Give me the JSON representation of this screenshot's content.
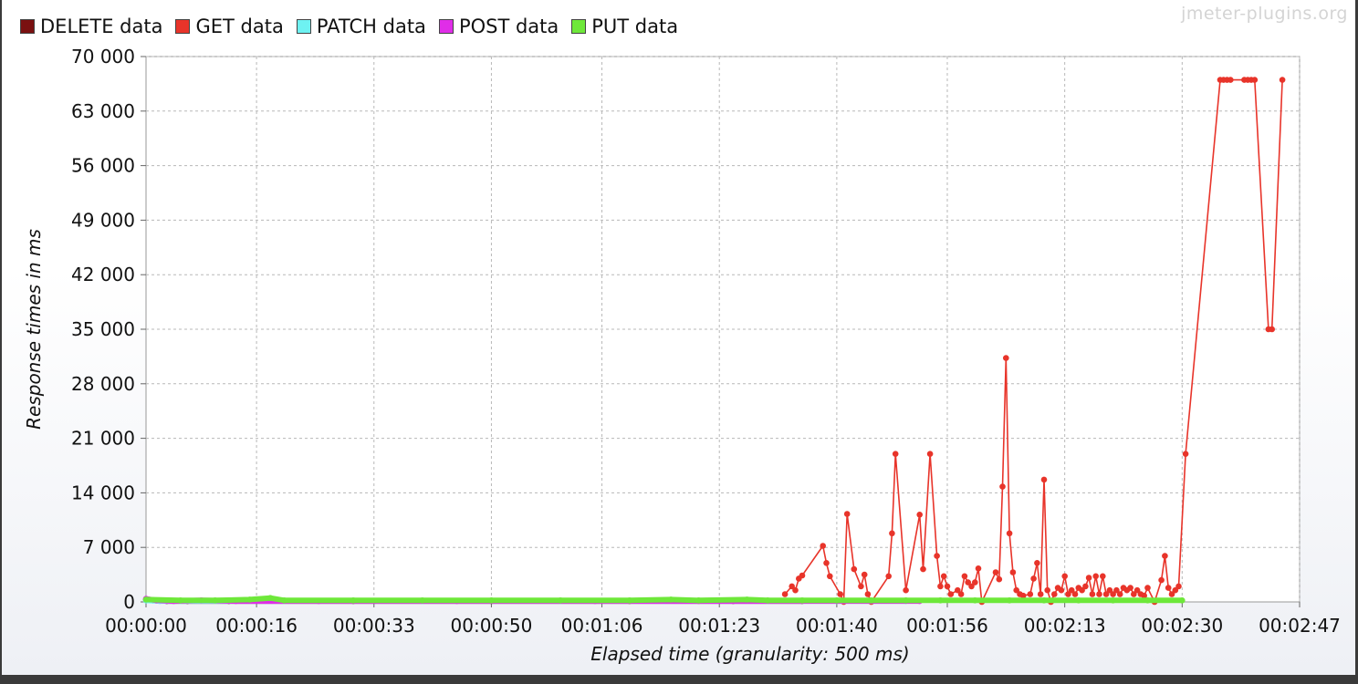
{
  "watermark": "jmeter-plugins.org",
  "chart_data": {
    "type": "line",
    "title": "",
    "xlabel": "Elapsed time (granularity: 500 ms)",
    "ylabel": "Response times in ms",
    "xlim": [
      "00:00:00",
      "00:02:47"
    ],
    "ylim": [
      0,
      70000
    ],
    "x_ticks": [
      "00:00:00",
      "00:00:16",
      "00:00:33",
      "00:00:50",
      "00:01:06",
      "00:01:23",
      "00:01:40",
      "00:01:56",
      "00:02:13",
      "00:02:30",
      "00:02:47"
    ],
    "y_ticks": [
      "0",
      "7 000",
      "14 000",
      "21 000",
      "28 000",
      "35 000",
      "42 000",
      "49 000",
      "56 000",
      "63 000",
      "70 000"
    ],
    "grid": true,
    "legend_placement": "top-left",
    "series": [
      {
        "name": "DELETE data",
        "color": "#7a1010",
        "points": [
          [
            0,
            300
          ],
          [
            1,
            200
          ],
          [
            3,
            100
          ],
          [
            6,
            100
          ],
          [
            12,
            100
          ],
          [
            30,
            100
          ],
          [
            50,
            100
          ],
          [
            70,
            100
          ],
          [
            85,
            100
          ],
          [
            95,
            100
          ]
        ]
      },
      {
        "name": "GET data",
        "color": "#e8342a",
        "points": [
          [
            92.5,
            1000
          ],
          [
            93.5,
            2000
          ],
          [
            94,
            1500
          ],
          [
            94.5,
            3000
          ],
          [
            95,
            3400
          ],
          [
            98,
            7200
          ],
          [
            98.5,
            5000
          ],
          [
            99,
            3300
          ],
          [
            100.5,
            1000
          ],
          [
            101,
            0
          ],
          [
            101.5,
            11300
          ],
          [
            102.5,
            4200
          ],
          [
            103.5,
            2000
          ],
          [
            104,
            3500
          ],
          [
            104.5,
            1000
          ],
          [
            105,
            0
          ],
          [
            107.5,
            3300
          ],
          [
            108,
            8800
          ],
          [
            108.5,
            19000
          ],
          [
            110,
            1500
          ],
          [
            112,
            11200
          ],
          [
            112.5,
            4200
          ],
          [
            113.5,
            19000
          ],
          [
            114.5,
            5900
          ],
          [
            115,
            2000
          ],
          [
            115.5,
            3300
          ],
          [
            116,
            2000
          ],
          [
            116.5,
            1000
          ],
          [
            117.5,
            1500
          ],
          [
            118,
            1000
          ],
          [
            118.5,
            3300
          ],
          [
            119,
            2500
          ],
          [
            119.5,
            2000
          ],
          [
            120,
            2500
          ],
          [
            120.5,
            4300
          ],
          [
            121,
            0
          ],
          [
            123,
            3800
          ],
          [
            123.5,
            2900
          ],
          [
            124,
            14800
          ],
          [
            124.5,
            31300
          ],
          [
            125,
            8800
          ],
          [
            125.5,
            3800
          ],
          [
            126,
            1500
          ],
          [
            126.5,
            1000
          ],
          [
            127,
            800
          ],
          [
            128,
            1000
          ],
          [
            128.5,
            3000
          ],
          [
            129,
            5000
          ],
          [
            129.5,
            1000
          ],
          [
            130,
            15700
          ],
          [
            130.5,
            1500
          ],
          [
            131,
            0
          ],
          [
            131.5,
            1000
          ],
          [
            132,
            1800
          ],
          [
            132.5,
            1500
          ],
          [
            133,
            3300
          ],
          [
            133.5,
            1000
          ],
          [
            134,
            1500
          ],
          [
            134.5,
            1000
          ],
          [
            135,
            1800
          ],
          [
            135.5,
            1500
          ],
          [
            136,
            2000
          ],
          [
            136.5,
            3100
          ],
          [
            137,
            1000
          ],
          [
            137.5,
            3300
          ],
          [
            138,
            1000
          ],
          [
            138.5,
            3300
          ],
          [
            139,
            1000
          ],
          [
            139.5,
            1500
          ],
          [
            140,
            1000
          ],
          [
            140.5,
            1500
          ],
          [
            141,
            1000
          ],
          [
            141.5,
            1800
          ],
          [
            142,
            1500
          ],
          [
            142.5,
            1800
          ],
          [
            143,
            1000
          ],
          [
            143.5,
            1500
          ],
          [
            144,
            1000
          ],
          [
            144.5,
            800
          ],
          [
            145,
            1800
          ],
          [
            146,
            0
          ],
          [
            147,
            2800
          ],
          [
            147.5,
            5900
          ],
          [
            148,
            1800
          ],
          [
            148.5,
            1000
          ],
          [
            149,
            1500
          ],
          [
            149.5,
            2000
          ],
          [
            150.5,
            19000
          ],
          [
            155.5,
            67000
          ],
          [
            156,
            67000
          ],
          [
            156.5,
            67000
          ],
          [
            157,
            67000
          ],
          [
            159,
            67000
          ],
          [
            159.5,
            67000
          ],
          [
            160,
            67000
          ],
          [
            160.5,
            67000
          ],
          [
            162.5,
            35000
          ],
          [
            163,
            35000
          ],
          [
            164.5,
            67000
          ]
        ]
      },
      {
        "name": "PATCH data",
        "color": "#6ef2f2",
        "points": [
          [
            0,
            200
          ],
          [
            2,
            100
          ],
          [
            5,
            100
          ],
          [
            20,
            100
          ],
          [
            40,
            100
          ],
          [
            60,
            100
          ],
          [
            75,
            100
          ],
          [
            90,
            100
          ],
          [
            100,
            100
          ],
          [
            110,
            100
          ]
        ]
      },
      {
        "name": "POST data",
        "color": "#e02de8",
        "points": [
          [
            0,
            400
          ],
          [
            1.5,
            200
          ],
          [
            4,
            100
          ],
          [
            8,
            200
          ],
          [
            13,
            100
          ],
          [
            25,
            100
          ],
          [
            45,
            100
          ],
          [
            65,
            100
          ],
          [
            80,
            100
          ],
          [
            112,
            100
          ]
        ]
      },
      {
        "name": "PUT data",
        "color": "#6ee83a",
        "points": [
          [
            0,
            300
          ],
          [
            5,
            200
          ],
          [
            10,
            200
          ],
          [
            15,
            300
          ],
          [
            18,
            500
          ],
          [
            20,
            200
          ],
          [
            30,
            200
          ],
          [
            40,
            200
          ],
          [
            50,
            200
          ],
          [
            60,
            200
          ],
          [
            70,
            200
          ],
          [
            76,
            300
          ],
          [
            80,
            200
          ],
          [
            87,
            300
          ],
          [
            90,
            200
          ],
          [
            95,
            200
          ],
          [
            100,
            200
          ],
          [
            105,
            200
          ],
          [
            110,
            200
          ],
          [
            115,
            200
          ],
          [
            120,
            200
          ],
          [
            125,
            200
          ],
          [
            130,
            200
          ],
          [
            135,
            200
          ],
          [
            140,
            200
          ],
          [
            145,
            200
          ],
          [
            150,
            200
          ]
        ]
      }
    ]
  }
}
